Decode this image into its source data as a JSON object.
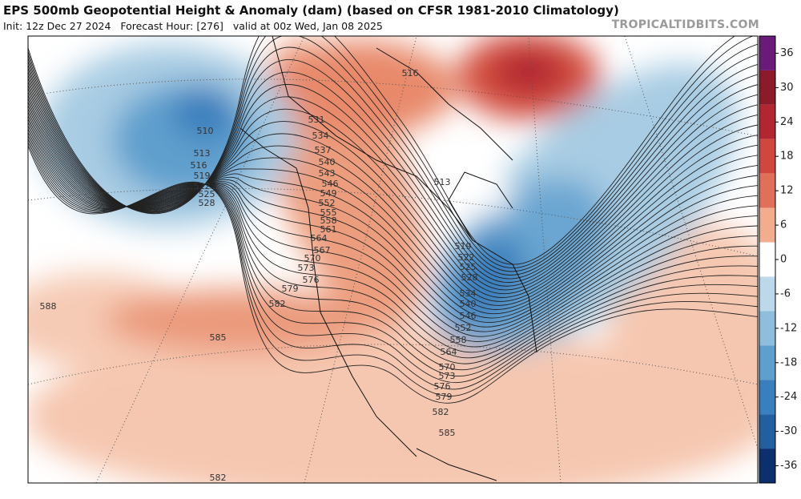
{
  "header": {
    "title": "EPS 500mb Geopotential Height & Anomaly (dam) (based on CFSR 1981-2010 Climatology)",
    "subtitle": "Init: 12z Dec 27 2024   Forecast Hour: [276]   valid at 00z Wed, Jan 08 2025",
    "watermark": "TROPICALTIDBITS.COM"
  },
  "colorbar": {
    "lim": [
      -39,
      39
    ],
    "ticks": [
      36,
      30,
      24,
      18,
      12,
      6,
      0,
      -6,
      -12,
      -18,
      -24,
      -30,
      -36
    ],
    "colors": [
      "#6a1b7a",
      "#8b1a2a",
      "#b22632",
      "#d0473f",
      "#e0705a",
      "#f2ac8e",
      "#ffffff",
      "#bcd8ea",
      "#8fbedc",
      "#5e9fcd",
      "#3a7fbd",
      "#225f9f",
      "#0d2f6e"
    ]
  },
  "map": {
    "contour_labels": [
      "516",
      "510",
      "513",
      "516",
      "519",
      "522",
      "525",
      "528",
      "531",
      "534",
      "537",
      "540",
      "543",
      "546",
      "549",
      "552",
      "555",
      "558",
      "561",
      "564",
      "567",
      "570",
      "573",
      "576",
      "579",
      "582",
      "585",
      "588",
      "513",
      "519",
      "522",
      "525",
      "528",
      "534",
      "540",
      "546",
      "552",
      "558",
      "564",
      "570",
      "573",
      "576",
      "579",
      "582",
      "585",
      "582"
    ]
  }
}
